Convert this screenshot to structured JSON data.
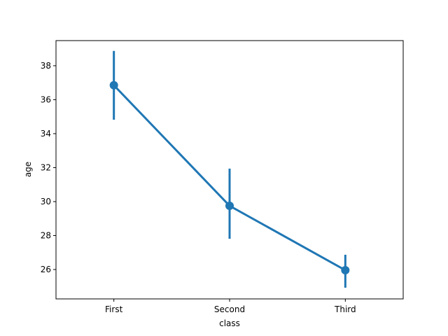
{
  "chart_data": {
    "type": "pointplot",
    "x_label": "class",
    "y_label": "age",
    "categories": [
      "First",
      "Second",
      "Third"
    ],
    "series": [
      {
        "name": "age",
        "color": "#1f77b4",
        "values": [
          36.85,
          29.75,
          25.96
        ],
        "ci_lower": [
          34.82,
          27.81,
          24.93
        ],
        "ci_upper": [
          38.87,
          31.94,
          26.87
        ]
      }
    ],
    "ylim": [
      24.27,
      39.48
    ],
    "yticks": [
      26,
      28,
      30,
      32,
      34,
      36,
      38
    ]
  }
}
